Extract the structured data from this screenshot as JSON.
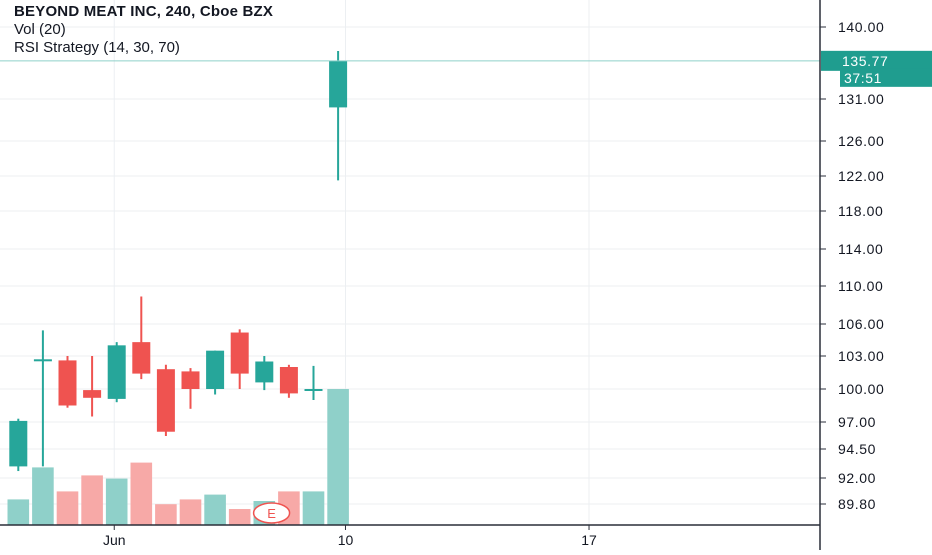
{
  "header": {
    "title": "BEYOND MEAT INC, 240, Cboe BZX",
    "vol_label": "Vol (20)",
    "strategy_label": "RSI Strategy (14, 30, 70)"
  },
  "price_axis": {
    "ticks": [
      "140.00",
      "131.00",
      "126.00",
      "122.00",
      "118.00",
      "114.00",
      "110.00",
      "106.00",
      "103.00",
      "100.00",
      "97.00",
      "94.50",
      "92.00",
      "89.80"
    ],
    "last_price_label": "135.77",
    "countdown_label": "37:51"
  },
  "time_axis": {
    "ticks": [
      {
        "label": "Jun",
        "bar": 4.4
      },
      {
        "label": "10",
        "bar": 13.8
      },
      {
        "label": "17",
        "bar": 23.7
      }
    ]
  },
  "earnings_marker": {
    "label": "E"
  },
  "colors": {
    "up": "#26a69a",
    "down": "#ef5350",
    "vol_up": "#8fd0c9",
    "vol_down": "#f7a9a7",
    "accent": "#1f9d8f",
    "grid": "#eceff2",
    "axis_text": "#131722"
  },
  "chart_data": {
    "type": "candlestick",
    "title": "BEYOND MEAT INC, 240, Cboe BZX",
    "symbol": "BEYOND MEAT INC",
    "interval": "240",
    "exchange": "Cboe BZX",
    "last_price": 135.77,
    "candles": [
      {
        "open": 93.0,
        "high": 97.3,
        "low": 92.6,
        "close": 97.1,
        "volume": 16
      },
      {
        "open": 102.6,
        "high": 105.4,
        "low": 93.0,
        "close": 102.7,
        "volume": 36
      },
      {
        "open": 102.6,
        "high": 103.0,
        "low": 98.3,
        "close": 98.5,
        "volume": 21
      },
      {
        "open": 99.9,
        "high": 103.0,
        "low": 97.5,
        "close": 99.2,
        "volume": 31
      },
      {
        "open": 99.1,
        "high": 104.3,
        "low": 98.8,
        "close": 104.0,
        "volume": 29
      },
      {
        "open": 104.3,
        "high": 108.9,
        "low": 100.9,
        "close": 101.4,
        "volume": 39
      },
      {
        "open": 101.8,
        "high": 102.2,
        "low": 95.7,
        "close": 96.1,
        "volume": 13
      },
      {
        "open": 101.6,
        "high": 101.9,
        "low": 98.2,
        "close": 100.0,
        "volume": 16
      },
      {
        "open": 100.0,
        "high": 103.5,
        "low": 99.5,
        "close": 103.5,
        "volume": 19
      },
      {
        "open": 105.2,
        "high": 105.5,
        "low": 100.0,
        "close": 101.4,
        "volume": 10
      },
      {
        "open": 100.6,
        "high": 103.0,
        "low": 99.9,
        "close": 102.5,
        "volume": 15
      },
      {
        "open": 102.0,
        "high": 102.2,
        "low": 99.2,
        "close": 99.6,
        "volume": 21
      },
      {
        "open": 99.9,
        "high": 102.1,
        "low": 99.0,
        "close": 100.0,
        "volume": 21
      },
      {
        "open": 130.0,
        "high": 137.0,
        "low": 121.5,
        "close": 135.77,
        "volume": 85
      }
    ]
  }
}
